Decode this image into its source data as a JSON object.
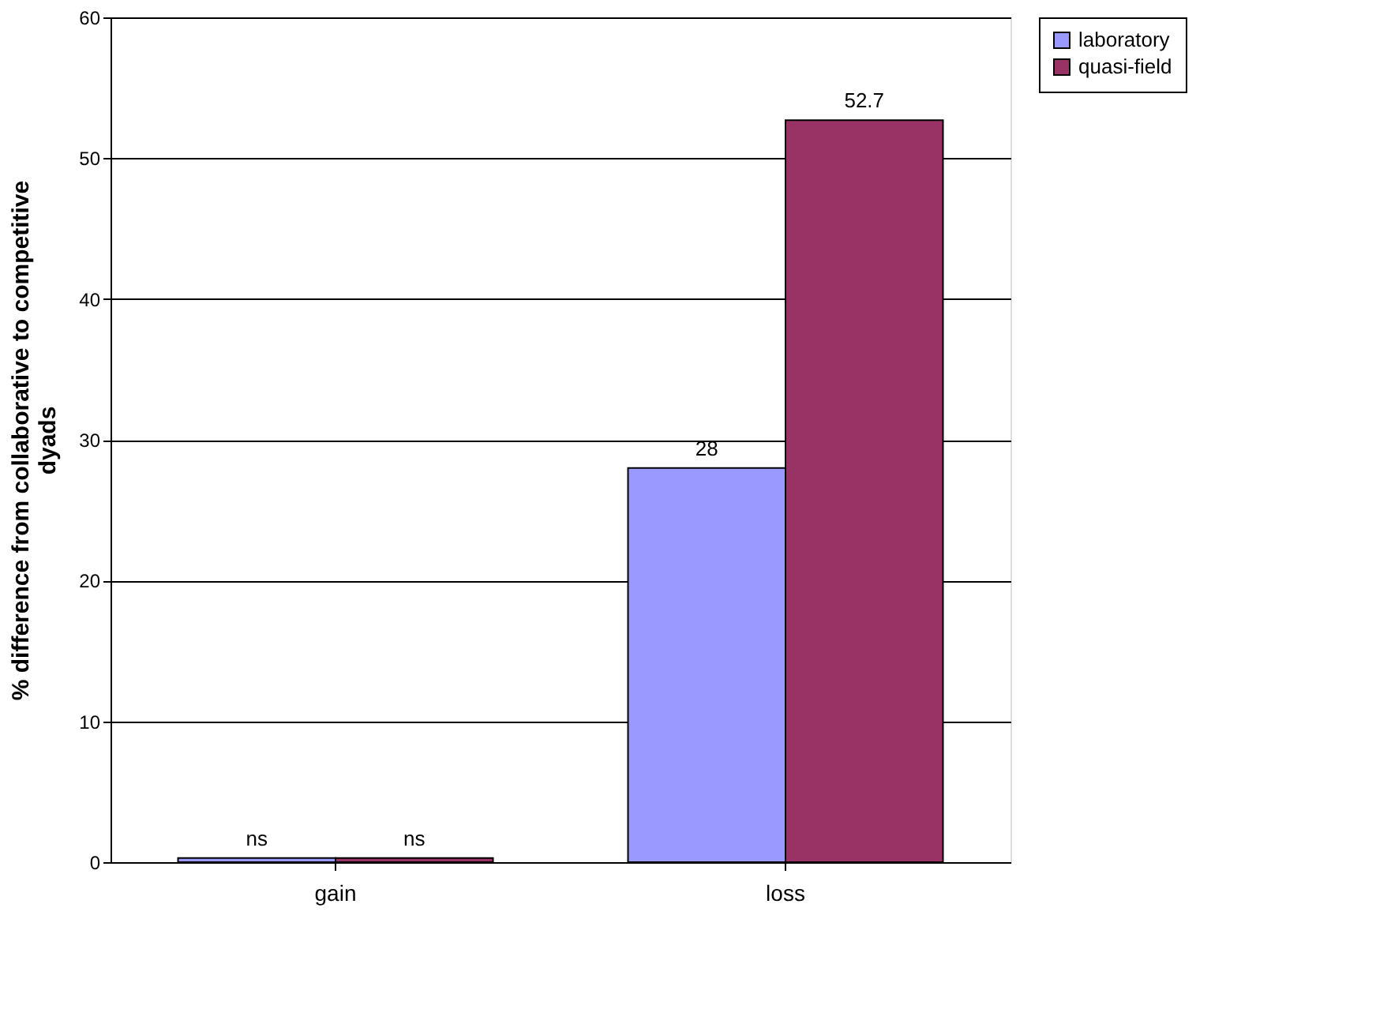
{
  "chart_data": {
    "type": "bar",
    "ylabel": "% difference from collaborative to competitive\ndyads",
    "categories": [
      "gain",
      "loss"
    ],
    "series": [
      {
        "name": "laboratory",
        "color": "#9999ff",
        "values": [
          0.3,
          28
        ],
        "value_labels": [
          "ns",
          "28"
        ]
      },
      {
        "name": "quasi-field",
        "color": "#993366",
        "values": [
          0.3,
          52.7
        ],
        "value_labels": [
          "ns",
          "52.7"
        ]
      }
    ],
    "ylim": [
      0,
      60
    ],
    "yticks": [
      0,
      10,
      20,
      30,
      40,
      50,
      60
    ],
    "grid": "y",
    "legend": "right"
  }
}
